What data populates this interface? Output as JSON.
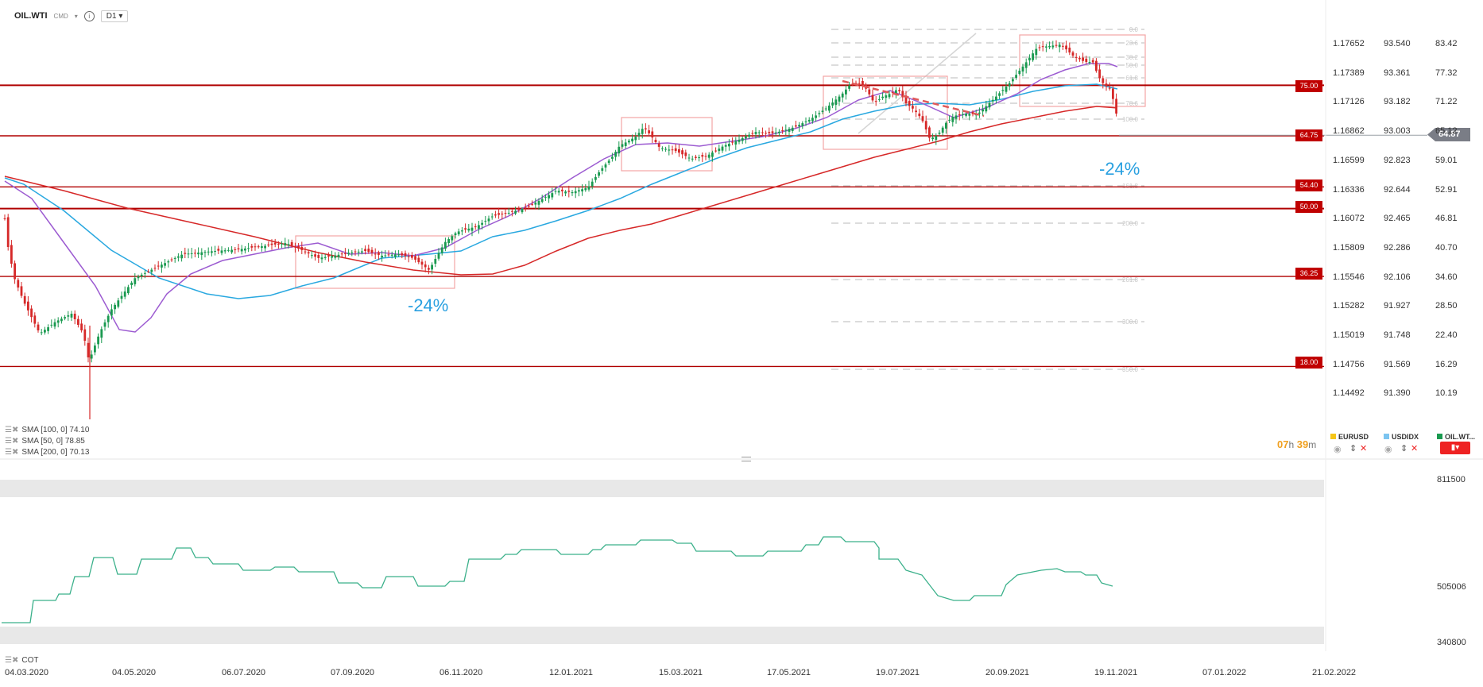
{
  "toolbar": {
    "symbol": "OIL.WTI",
    "exchange": "CMD",
    "timeframe": "D1"
  },
  "indicators": [
    {
      "label": "SMA [100, 0] 74.10",
      "color": "#29a8e0"
    },
    {
      "label": "SMA [50, 0] 78.85",
      "color": "#9c5bd1"
    },
    {
      "label": "SMA [200, 0] 70.13",
      "color": "#d62828"
    }
  ],
  "level_tags": [
    "75.00",
    "64.75",
    "54.40",
    "50.00",
    "36.25",
    "18.00"
  ],
  "last_price": "64.87",
  "axis_eurusd": [
    "1.17652",
    "1.17389",
    "1.17126",
    "1.16862",
    "1.16599",
    "1.16336",
    "1.16072",
    "1.15809",
    "1.15546",
    "1.15282",
    "1.15019",
    "1.14756",
    "1.14492"
  ],
  "axis_usdidx": [
    "93.540",
    "93.361",
    "93.182",
    "93.003",
    "92.823",
    "92.644",
    "92.465",
    "92.286",
    "92.106",
    "91.927",
    "91.748",
    "91.569",
    "91.390"
  ],
  "axis_oil": [
    "83.42",
    "77.32",
    "71.22",
    "65.12",
    "59.01",
    "52.91",
    "46.81",
    "40.70",
    "34.60",
    "28.50",
    "22.40",
    "16.29",
    "10.19"
  ],
  "fib_labels": [
    "0.0",
    "23.6",
    "38.2",
    "50.0",
    "61.8",
    "78.6",
    "100.0",
    "161.8",
    "200.0",
    "261.8",
    "300.0",
    "350.0"
  ],
  "annotations": [
    "-24%",
    "-24%"
  ],
  "timer": {
    "hours": "07",
    "h": "h",
    "minutes": "39",
    "m": "m"
  },
  "legend_symbols": [
    {
      "name": "EURUSD",
      "color": "#f5c518"
    },
    {
      "name": "USDIDX",
      "color": "#7cc4f0"
    },
    {
      "name": "OIL.WT...",
      "color": "#1a9a50"
    }
  ],
  "cot": {
    "label": "COT",
    "axis": [
      "811500",
      "505006",
      "340800"
    ]
  },
  "x_axis": [
    "04.03.2020",
    "04.05.2020",
    "06.07.2020",
    "07.09.2020",
    "06.11.2020",
    "12.01.2021",
    "15.03.2021",
    "17.05.2021",
    "19.07.2021",
    "20.09.2021",
    "19.11.2021",
    "07.01.2022",
    "21.02.2022"
  ],
  "colors": {
    "up": "#1a9a50",
    "down": "#d62828",
    "level": "#b00000",
    "sma100": "#29a8e0",
    "sma50": "#9c5bd1",
    "sma200": "#d62828",
    "cot_line": "#3ab08a"
  },
  "chart_data": {
    "type": "candlestick",
    "symbol": "OIL.WTI",
    "timeframe": "D1",
    "dates": [
      "04.03.2020",
      "04.05.2020",
      "06.07.2020",
      "07.09.2020",
      "06.11.2020",
      "12.01.2021",
      "15.03.2021",
      "17.05.2021",
      "19.07.2021",
      "20.09.2021",
      "19.11.2021"
    ],
    "close_approx": [
      46,
      24,
      40.5,
      37.5,
      37.5,
      52.5,
      64.5,
      66.5,
      66.5,
      76,
      64.87
    ],
    "horizontal_levels": [
      75.0,
      64.75,
      54.4,
      50.0,
      36.25,
      18.0
    ],
    "sma": [
      {
        "name": "SMA [100, 0]",
        "last": 74.1
      },
      {
        "name": "SMA [50, 0]",
        "last": 78.85
      },
      {
        "name": "SMA [200, 0]",
        "last": 70.13
      }
    ],
    "fibonacci_levels": [
      0.0,
      23.6,
      38.2,
      50.0,
      61.8,
      78.6,
      100.0,
      161.8,
      200.0,
      261.8,
      300.0,
      350.0
    ],
    "annotations": [
      "-24%",
      "-24%"
    ],
    "ylim": [
      10.19,
      83.42
    ],
    "cot_series": {
      "name": "COT",
      "ylim": [
        340800,
        811500
      ]
    }
  }
}
